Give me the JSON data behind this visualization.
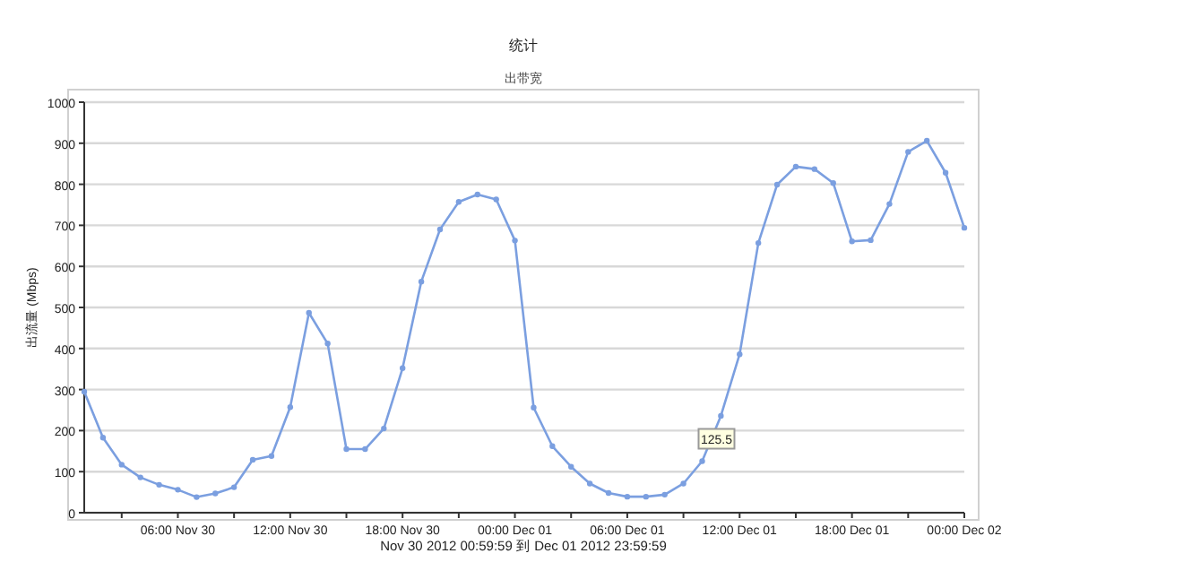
{
  "chart_data": {
    "type": "line",
    "title": "统计",
    "subtitle": "出带宽",
    "ylabel": "出流量 (Mbps)",
    "annotations": [
      {
        "text": "125.5",
        "x": "2012-12-01T10:00",
        "y": 125.5
      },
      "Nov 30 2012  00:59:59  到  Dec 01 2012  23:59:59"
    ],
    "x": [
      "2012-11-30T01:00",
      "2012-11-30T02:00",
      "2012-11-30T03:00",
      "2012-11-30T04:00",
      "2012-11-30T05:00",
      "2012-11-30T06:00",
      "2012-11-30T07:00",
      "2012-11-30T08:00",
      "2012-11-30T09:00",
      "2012-11-30T10:00",
      "2012-11-30T11:00",
      "2012-11-30T12:00",
      "2012-11-30T13:00",
      "2012-11-30T14:00",
      "2012-11-30T15:00",
      "2012-11-30T16:00",
      "2012-11-30T17:00",
      "2012-11-30T18:00",
      "2012-11-30T19:00",
      "2012-11-30T20:00",
      "2012-11-30T21:00",
      "2012-11-30T22:00",
      "2012-11-30T23:00",
      "2012-12-01T00:00",
      "2012-12-01T01:00",
      "2012-12-01T02:00",
      "2012-12-01T03:00",
      "2012-12-01T04:00",
      "2012-12-01T05:00",
      "2012-12-01T06:00",
      "2012-12-01T07:00",
      "2012-12-01T08:00",
      "2012-12-01T09:00",
      "2012-12-01T10:00",
      "2012-12-01T11:00",
      "2012-12-01T12:00",
      "2012-12-01T13:00",
      "2012-12-01T14:00",
      "2012-12-01T15:00",
      "2012-12-01T16:00",
      "2012-12-01T17:00",
      "2012-12-01T18:00",
      "2012-12-01T19:00",
      "2012-12-01T20:00",
      "2012-12-01T21:00",
      "2012-12-01T22:00",
      "2012-12-01T23:00",
      "2012-12-02T00:00"
    ],
    "series": [
      {
        "color": "#7b9fe0",
        "values": [
          295,
          183,
          117,
          86,
          68,
          56,
          38,
          47,
          62,
          129,
          138,
          257,
          487,
          412,
          155,
          155,
          205,
          352,
          563,
          690,
          757,
          775,
          763,
          663,
          256,
          162,
          112,
          71,
          48,
          39,
          39,
          44,
          71,
          125.5,
          236,
          386,
          657,
          799,
          843,
          837,
          803,
          661,
          664,
          752,
          879,
          906,
          828,
          694
        ]
      }
    ],
    "xlim": [
      "2012-11-30T01:00",
      "2012-12-02T00:00"
    ],
    "xticks": [
      {
        "value": "2012-11-30T03:00",
        "label": null
      },
      {
        "value": "2012-11-30T06:00",
        "label": "06:00 Nov 30"
      },
      {
        "value": "2012-11-30T09:00",
        "label": null
      },
      {
        "value": "2012-11-30T12:00",
        "label": "12:00 Nov 30"
      },
      {
        "value": "2012-11-30T15:00",
        "label": null
      },
      {
        "value": "2012-11-30T18:00",
        "label": "18:00 Nov 30"
      },
      {
        "value": "2012-11-30T21:00",
        "label": null
      },
      {
        "value": "2012-12-01T00:00",
        "label": "00:00 Dec 01"
      },
      {
        "value": "2012-12-01T03:00",
        "label": null
      },
      {
        "value": "2012-12-01T06:00",
        "label": "06:00 Dec 01"
      },
      {
        "value": "2012-12-01T09:00",
        "label": null
      },
      {
        "value": "2012-12-01T12:00",
        "label": "12:00 Dec 01"
      },
      {
        "value": "2012-12-01T15:00",
        "label": null
      },
      {
        "value": "2012-12-01T18:00",
        "label": "18:00 Dec 01"
      },
      {
        "value": "2012-12-01T21:00",
        "label": null
      },
      {
        "value": "2012-12-02T00:00",
        "label": "00:00 Dec 02"
      }
    ],
    "ylim": [
      0,
      1000
    ],
    "yticks": [
      0,
      100,
      200,
      300,
      400,
      500,
      600,
      700,
      800,
      900,
      1000
    ],
    "grid": "y",
    "marker": "circle",
    "line_style": "solid"
  }
}
